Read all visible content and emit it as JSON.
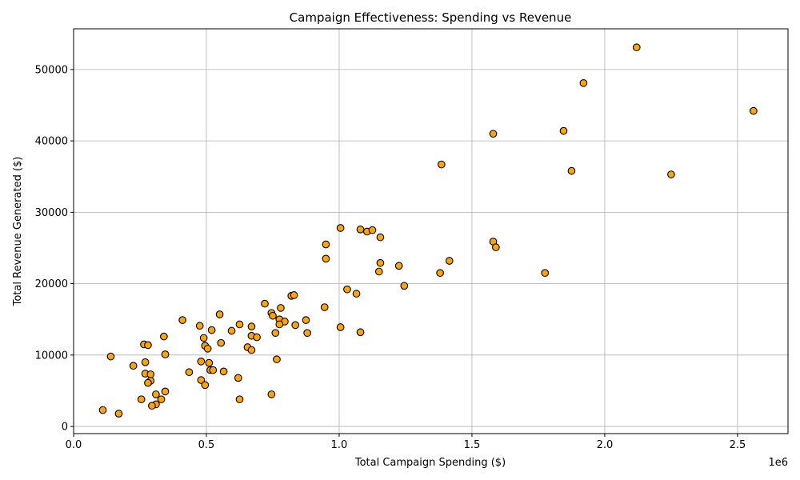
{
  "chart_data": {
    "type": "scatter",
    "title": "Campaign Effectiveness: Spending vs Revenue",
    "xlabel": "Total Campaign Spending ($)",
    "ylabel": "Total Revenue Generated ($)",
    "x_offset_label": "1e6",
    "xlim": [
      0,
      2.69
    ],
    "ylim": [
      -1000,
      55700
    ],
    "x_ticks": [
      0.0,
      0.5,
      1.0,
      1.5,
      2.0,
      2.5
    ],
    "x_tick_labels": [
      "0.0",
      "0.5",
      "1.0",
      "1.5",
      "2.0",
      "2.5"
    ],
    "y_ticks": [
      0,
      10000,
      20000,
      30000,
      40000,
      50000
    ],
    "y_tick_labels": [
      "0",
      "10000",
      "20000",
      "30000",
      "40000",
      "50000"
    ],
    "grid": true,
    "marker_color": "#FFA500",
    "marker_edge_color": "#000000",
    "points": [
      [
        2.12,
        53100
      ],
      [
        1.92,
        48100
      ],
      [
        2.56,
        44200
      ],
      [
        1.845,
        41400
      ],
      [
        1.58,
        41000
      ],
      [
        1.385,
        36700
      ],
      [
        1.875,
        35800
      ],
      [
        2.25,
        35300
      ],
      [
        1.005,
        27800
      ],
      [
        1.08,
        27600
      ],
      [
        1.105,
        27300
      ],
      [
        1.125,
        27500
      ],
      [
        1.155,
        26500
      ],
      [
        0.95,
        25500
      ],
      [
        1.58,
        25900
      ],
      [
        1.59,
        25100
      ],
      [
        0.95,
        23500
      ],
      [
        1.155,
        22900
      ],
      [
        1.225,
        22500
      ],
      [
        1.415,
        23200
      ],
      [
        1.15,
        21700
      ],
      [
        1.38,
        21500
      ],
      [
        1.775,
        21500
      ],
      [
        1.245,
        19700
      ],
      [
        1.03,
        19200
      ],
      [
        1.065,
        18600
      ],
      [
        0.82,
        18300
      ],
      [
        0.83,
        18400
      ],
      [
        0.72,
        17200
      ],
      [
        0.78,
        16600
      ],
      [
        0.945,
        16700
      ],
      [
        0.55,
        15700
      ],
      [
        0.745,
        15900
      ],
      [
        0.75,
        15500
      ],
      [
        0.41,
        14900
      ],
      [
        0.775,
        15000
      ],
      [
        0.795,
        14700
      ],
      [
        0.875,
        14900
      ],
      [
        0.475,
        14100
      ],
      [
        0.625,
        14300
      ],
      [
        0.67,
        14000
      ],
      [
        0.775,
        14300
      ],
      [
        0.835,
        14200
      ],
      [
        1.005,
        13900
      ],
      [
        0.52,
        13500
      ],
      [
        0.595,
        13400
      ],
      [
        0.76,
        13100
      ],
      [
        0.88,
        13100
      ],
      [
        1.08,
        13200
      ],
      [
        0.34,
        12600
      ],
      [
        0.67,
        12700
      ],
      [
        0.69,
        12500
      ],
      [
        0.49,
        12400
      ],
      [
        0.555,
        11700
      ],
      [
        0.265,
        11500
      ],
      [
        0.28,
        11400
      ],
      [
        0.495,
        11300
      ],
      [
        0.505,
        10900
      ],
      [
        0.655,
        11100
      ],
      [
        0.67,
        10700
      ],
      [
        0.345,
        10100
      ],
      [
        0.14,
        9800
      ],
      [
        0.765,
        9400
      ],
      [
        0.48,
        9100
      ],
      [
        0.27,
        9000
      ],
      [
        0.51,
        8900
      ],
      [
        0.225,
        8500
      ],
      [
        0.515,
        7900
      ],
      [
        0.525,
        7900
      ],
      [
        0.435,
        7600
      ],
      [
        0.565,
        7700
      ],
      [
        0.27,
        7400
      ],
      [
        0.29,
        7300
      ],
      [
        0.62,
        6800
      ],
      [
        0.48,
        6500
      ],
      [
        0.29,
        6400
      ],
      [
        0.28,
        6100
      ],
      [
        0.495,
        5800
      ],
      [
        0.345,
        4900
      ],
      [
        0.31,
        4500
      ],
      [
        0.745,
        4500
      ],
      [
        0.255,
        3800
      ],
      [
        0.33,
        3800
      ],
      [
        0.625,
        3800
      ],
      [
        0.31,
        3100
      ],
      [
        0.295,
        2900
      ],
      [
        0.11,
        2300
      ],
      [
        0.17,
        1800
      ]
    ]
  }
}
